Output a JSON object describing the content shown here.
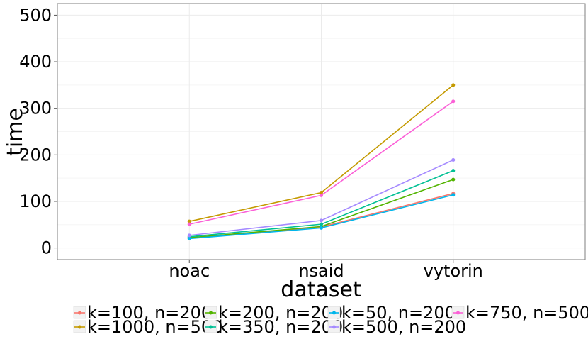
{
  "chart_data": {
    "type": "line",
    "xlabel": "dataset",
    "ylabel": "time",
    "categories": [
      "noac",
      "nsaid",
      "vytorin"
    ],
    "ylim": [
      -25,
      525
    ],
    "yticks": [
      0,
      100,
      200,
      300,
      400,
      500
    ],
    "grid": true,
    "legend_position": "bottom",
    "series": [
      {
        "name": "k=100, n=200",
        "color": "#F8766D",
        "values": [
          21,
          45,
          117
        ]
      },
      {
        "name": "k=1000, n=500",
        "color": "#C49A00",
        "values": [
          57,
          119,
          350
        ]
      },
      {
        "name": "k=200, n=200",
        "color": "#53B400",
        "values": [
          22,
          46,
          147
        ]
      },
      {
        "name": "k=350, n=200",
        "color": "#00C094",
        "values": [
          24,
          51,
          166
        ]
      },
      {
        "name": "k=50, n=200",
        "color": "#00B6EB",
        "values": [
          20,
          43,
          114
        ]
      },
      {
        "name": "k=500, n=200",
        "color": "#A58AFF",
        "values": [
          27,
          59,
          189
        ]
      },
      {
        "name": "k=750, n=500",
        "color": "#FB61D7",
        "values": [
          51,
          113,
          315
        ]
      }
    ]
  }
}
